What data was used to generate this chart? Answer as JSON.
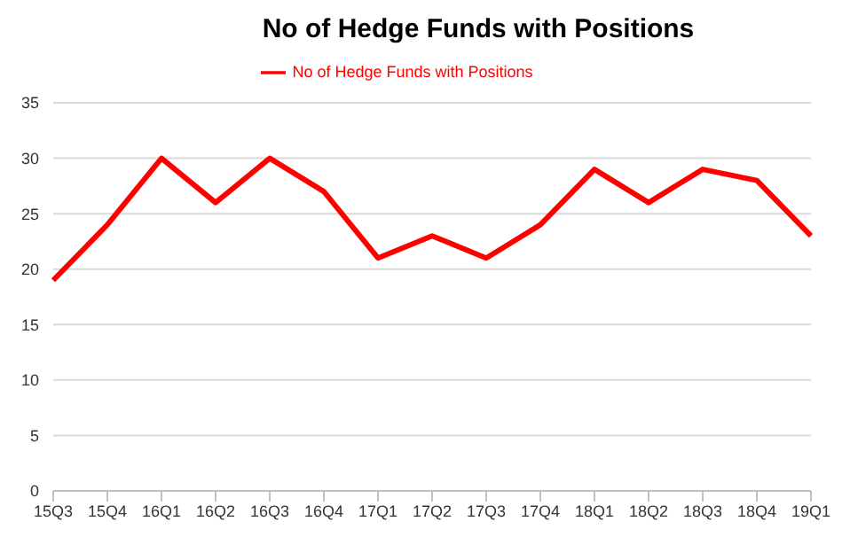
{
  "chart_data": {
    "type": "line",
    "title": "No of Hedge Funds with Positions",
    "categories": [
      "15Q3",
      "15Q4",
      "16Q1",
      "16Q2",
      "16Q3",
      "16Q4",
      "17Q1",
      "17Q2",
      "17Q3",
      "17Q4",
      "18Q1",
      "18Q2",
      "18Q3",
      "18Q4",
      "19Q1"
    ],
    "series": [
      {
        "name": "No of Hedge Funds with Positions",
        "color": "#ff0000",
        "values": [
          19,
          24,
          30,
          26,
          30,
          27,
          21,
          23,
          21,
          24,
          29,
          26,
          29,
          28,
          23
        ]
      }
    ],
    "ylim": [
      0,
      35
    ],
    "yticks": [
      0,
      5,
      10,
      15,
      20,
      25,
      30,
      35
    ],
    "grid": "y",
    "legend": "top",
    "marker": "none",
    "line_style": "solid"
  }
}
